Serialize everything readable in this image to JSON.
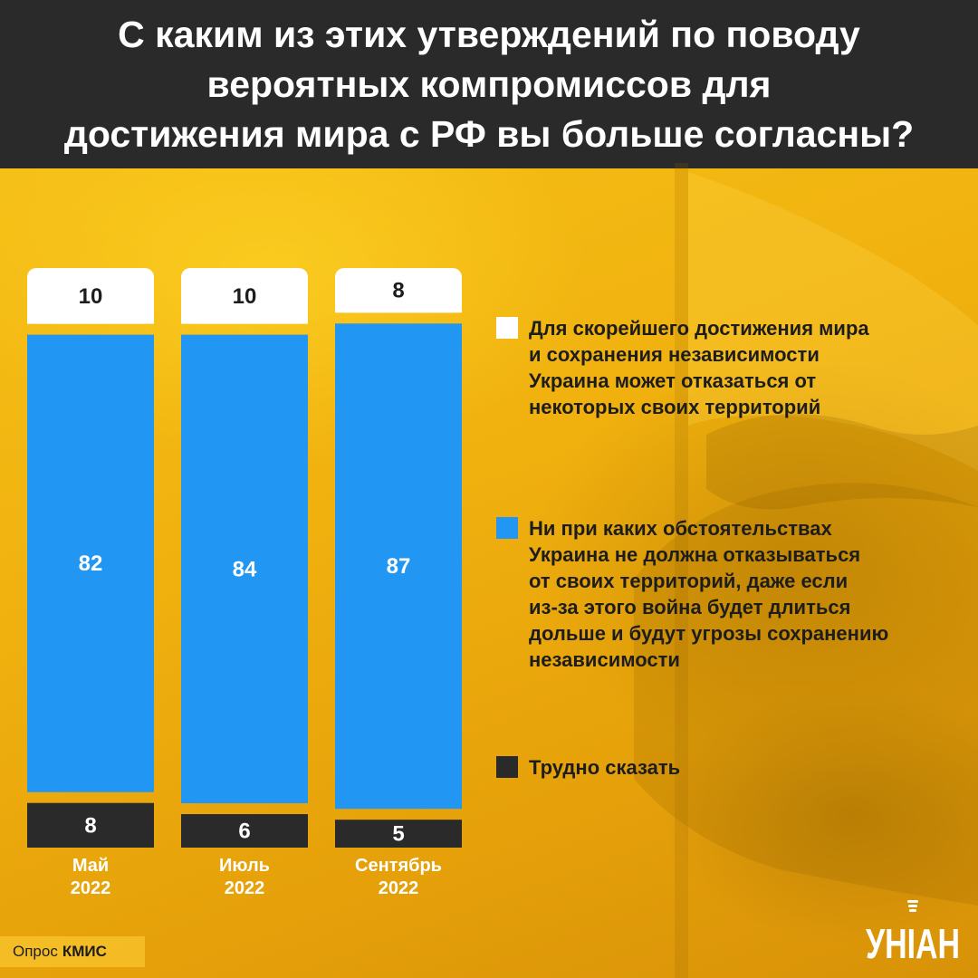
{
  "header": {
    "title": "С каким из этих утверждений по поводу\nвероятных компромиссов для\nдостижения мира с РФ вы больше согласны?"
  },
  "chart_data": {
    "type": "bar",
    "stacked": true,
    "categories": [
      "Май\n2022",
      "Июль\n2022",
      "Сентябрь\n2022"
    ],
    "series": [
      {
        "name": "Для скорейшего достижения мира\nи сохранения независимости\nУкраина может отказаться от\nнекоторых своих территорий",
        "values": [
          10,
          10,
          8
        ],
        "color": "#ffffff"
      },
      {
        "name": "Ни при каких обстоятельствах\nУкраина не должна отказываться\nот своих территорий, даже если\nиз-за этого война будет длиться\nдольше и будут угрозы сохранению\nнезависимости",
        "values": [
          82,
          84,
          87
        ],
        "color": "#2196f3"
      },
      {
        "name": "Трудно сказать",
        "values": [
          8,
          6,
          5
        ],
        "color": "#2a2a2a"
      }
    ],
    "legend_position": "right"
  },
  "source": {
    "prefix": "Опрос",
    "name": "КМИС"
  },
  "logo": {
    "text": "УНІАН"
  }
}
